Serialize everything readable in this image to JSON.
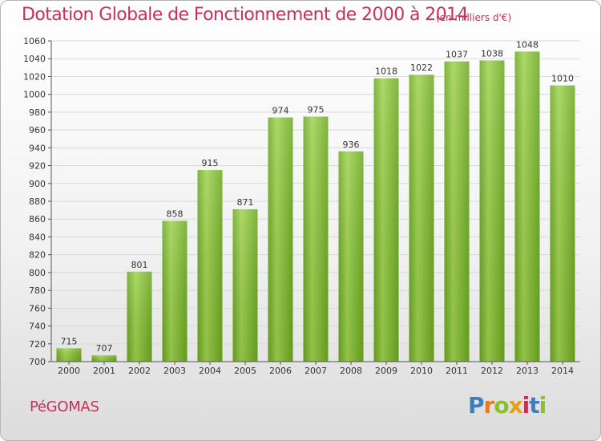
{
  "title": "Dotation Globale de Fonctionnement de 2000 à 2014",
  "subtitle": "(en milliers d'€)",
  "place": "PéGOMAS",
  "logo": {
    "text": "Proxiti",
    "letters": [
      "P",
      "r",
      "o",
      "x",
      "i",
      "t",
      "i"
    ]
  },
  "colors": {
    "bar": "#7fbf2e",
    "bar_light": "#a6d65c",
    "bar_dark": "#5f9c1a",
    "title": "#c8305a",
    "grid": "#d9d9d9"
  },
  "chart_data": {
    "type": "bar",
    "title": "Dotation Globale de Fonctionnement de 2000 à 2014",
    "subtitle": "(en milliers d'€)",
    "xlabel": "",
    "ylabel": "",
    "categories": [
      "2000",
      "2001",
      "2002",
      "2003",
      "2004",
      "2005",
      "2006",
      "2007",
      "2008",
      "2009",
      "2010",
      "2011",
      "2012",
      "2013",
      "2014"
    ],
    "values": [
      715,
      707,
      801,
      858,
      915,
      871,
      974,
      975,
      936,
      1018,
      1022,
      1037,
      1038,
      1048,
      1010
    ],
    "ylim": [
      700,
      1060
    ],
    "yticks": [
      700,
      720,
      740,
      760,
      780,
      800,
      820,
      840,
      860,
      880,
      900,
      920,
      940,
      960,
      980,
      1000,
      1020,
      1040,
      1060
    ],
    "grid": true,
    "legend": "none"
  }
}
